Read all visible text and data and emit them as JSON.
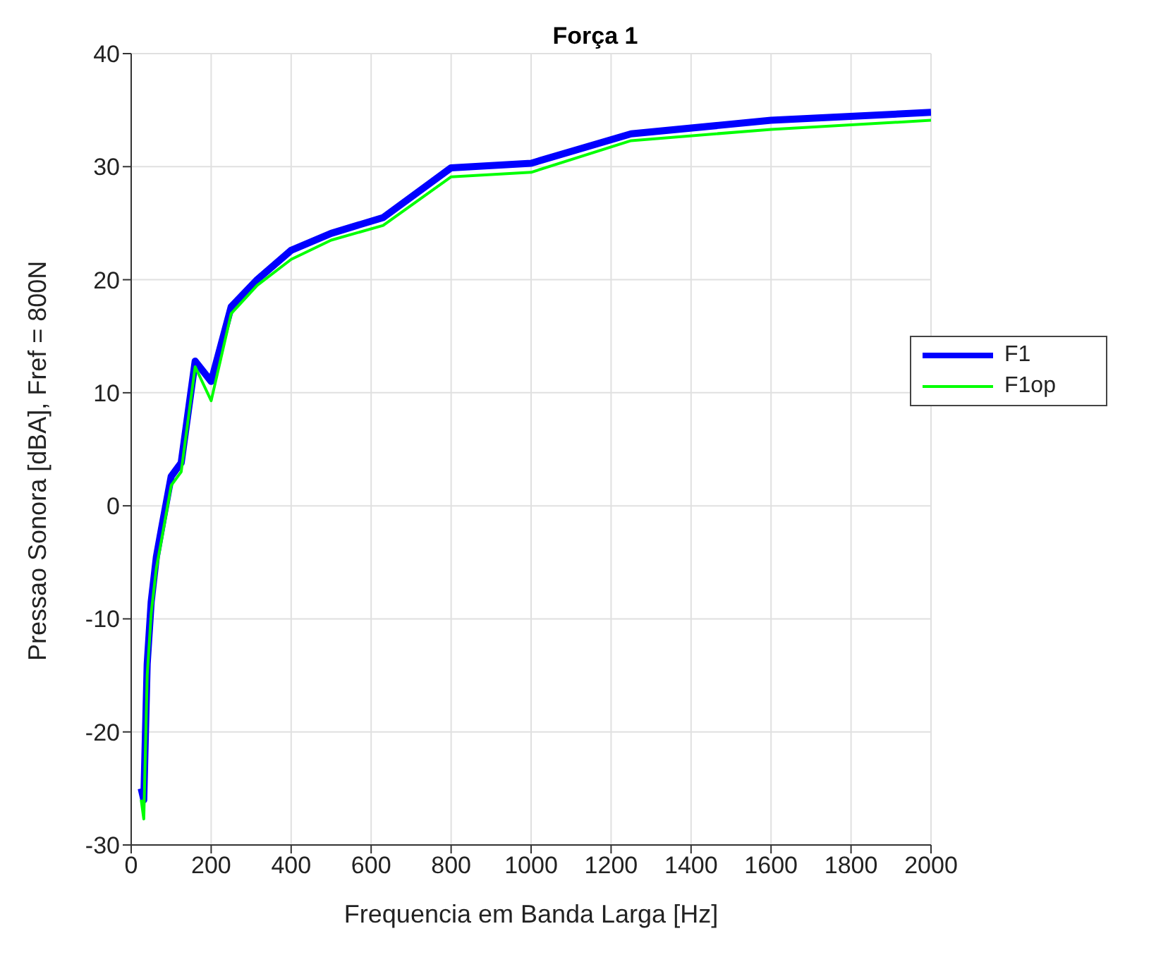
{
  "chart_data": {
    "type": "line",
    "title": "Força 1",
    "xlabel": "Frequencia em Banda Larga [Hz]",
    "ylabel": "Pressao Sonora [dBA], Fref = 800N",
    "x": [
      25,
      31.5,
      40,
      50,
      63,
      80,
      100,
      125,
      160,
      200,
      250,
      315,
      400,
      500,
      630,
      800,
      1000,
      1250,
      1600,
      2000
    ],
    "series": [
      {
        "name": "F1",
        "color": "#0000ff",
        "values": [
          -25,
          -26,
          -14,
          -8.5,
          -4.5,
          -1.2,
          2.6,
          3.8,
          12.8,
          11,
          17.6,
          20,
          22.6,
          24.1,
          25.5,
          29.9,
          30.3,
          32.9,
          34.1,
          34.8
        ]
      },
      {
        "name": "F1op",
        "color": "#00ff00",
        "values": [
          -26,
          -27.7,
          -15,
          -9.5,
          -5.5,
          -2.2,
          1.8,
          3,
          12.3,
          9.3,
          17,
          19.5,
          21.8,
          23.5,
          24.8,
          29.1,
          29.5,
          32.3,
          33.3,
          34.1
        ]
      }
    ],
    "xlim": [
      0,
      2000
    ],
    "xticks": [
      0,
      200,
      400,
      600,
      800,
      1000,
      1200,
      1400,
      1600,
      1800,
      2000
    ],
    "ylim": [
      -30,
      40
    ],
    "yticks": [
      -30,
      -20,
      -10,
      0,
      10,
      20,
      30,
      40
    ],
    "grid": true,
    "legend": "right",
    "marker": "none",
    "line_style": "solid"
  }
}
